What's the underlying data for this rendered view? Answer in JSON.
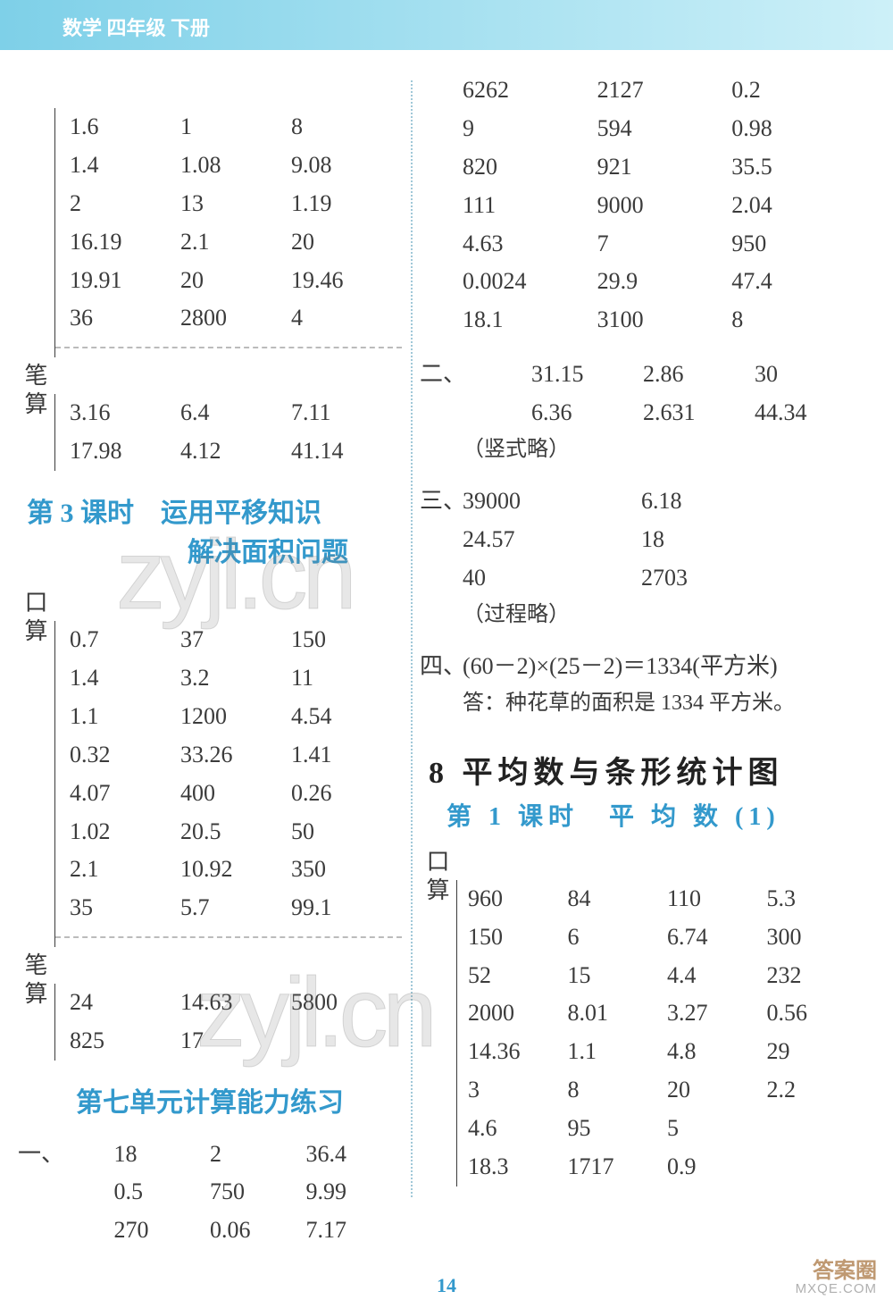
{
  "banner": "数学 四年级 下册",
  "page_number": "14",
  "footer": {
    "line1": "答案圈",
    "line2": "MXQE.COM"
  },
  "watermarks": [
    "zyjl.cn",
    "zyjl.cn"
  ],
  "left": {
    "block1": {
      "side1": "",
      "rows1": [
        [
          "1.6",
          "1",
          "8"
        ],
        [
          "1.4",
          "1.08",
          "9.08"
        ],
        [
          "2",
          "13",
          "1.19"
        ],
        [
          "16.19",
          "2.1",
          "20"
        ],
        [
          "19.91",
          "20",
          "19.46"
        ],
        [
          "36",
          "2800",
          "4"
        ]
      ],
      "side2": "笔算",
      "rows2": [
        [
          "3.16",
          "6.4",
          "7.11"
        ],
        [
          "17.98",
          "4.12",
          "41.14"
        ]
      ]
    },
    "heading1_a": "第 3 课时　运用平移知识",
    "heading1_b": "解决面积问题",
    "block2": {
      "side1": "口算",
      "rows1": [
        [
          "0.7",
          "37",
          "150"
        ],
        [
          "1.4",
          "3.2",
          "11"
        ],
        [
          "1.1",
          "1200",
          "4.54"
        ],
        [
          "0.32",
          "33.26",
          "1.41"
        ],
        [
          "4.07",
          "400",
          "0.26"
        ],
        [
          "1.02",
          "20.5",
          "50"
        ],
        [
          "2.1",
          "10.92",
          "350"
        ],
        [
          "35",
          "5.7",
          "99.1"
        ]
      ],
      "side2": "笔算",
      "rows2": [
        [
          "24",
          "14.63",
          "5800"
        ],
        [
          "825",
          "17",
          ""
        ]
      ]
    },
    "heading2": "第七单元计算能力练习",
    "block3": {
      "marker": "一、",
      "rows": [
        [
          "18",
          "2",
          "36.4"
        ],
        [
          "0.5",
          "750",
          "9.99"
        ],
        [
          "270",
          "0.06",
          "7.17"
        ]
      ]
    }
  },
  "right": {
    "block1": {
      "rows": [
        [
          "6262",
          "2127",
          "0.2"
        ],
        [
          "9",
          "594",
          "0.98"
        ],
        [
          "820",
          "921",
          "35.5"
        ],
        [
          "111",
          "9000",
          "2.04"
        ],
        [
          "4.63",
          "7",
          "950"
        ],
        [
          "0.0024",
          "29.9",
          "47.4"
        ],
        [
          "18.1",
          "3100",
          "8"
        ]
      ]
    },
    "sec2": {
      "marker": "二、",
      "rows": [
        [
          "31.15",
          "2.86",
          "30"
        ],
        [
          "6.36",
          "2.631",
          "44.34"
        ]
      ],
      "note": "（竖式略）"
    },
    "sec3": {
      "marker": "三、",
      "rows": [
        [
          "39000",
          "6.18"
        ],
        [
          "24.57",
          "18"
        ],
        [
          "40",
          "2703"
        ]
      ],
      "note": "（过程略）"
    },
    "sec4": {
      "marker": "四、",
      "expr": "(60－2)×(25－2)＝1334(平方米)",
      "answer": "答：种花草的面积是 1334 平方米。"
    },
    "heading_big": "8 平均数与条形统计图",
    "heading_sub": "第 1 课时　平 均 数 (1)",
    "block4": {
      "side": "口算",
      "rows": [
        [
          "960",
          "84",
          "110",
          "5.3"
        ],
        [
          "150",
          "6",
          "6.74",
          "300"
        ],
        [
          "52",
          "15",
          "4.4",
          "232"
        ],
        [
          "2000",
          "8.01",
          "3.27",
          "0.56"
        ],
        [
          "14.36",
          "1.1",
          "4.8",
          "29"
        ],
        [
          "3",
          "8",
          "20",
          "2.2"
        ],
        [
          "4.6",
          "95",
          "5",
          ""
        ],
        [
          "18.3",
          "1717",
          "0.9",
          ""
        ]
      ]
    }
  }
}
